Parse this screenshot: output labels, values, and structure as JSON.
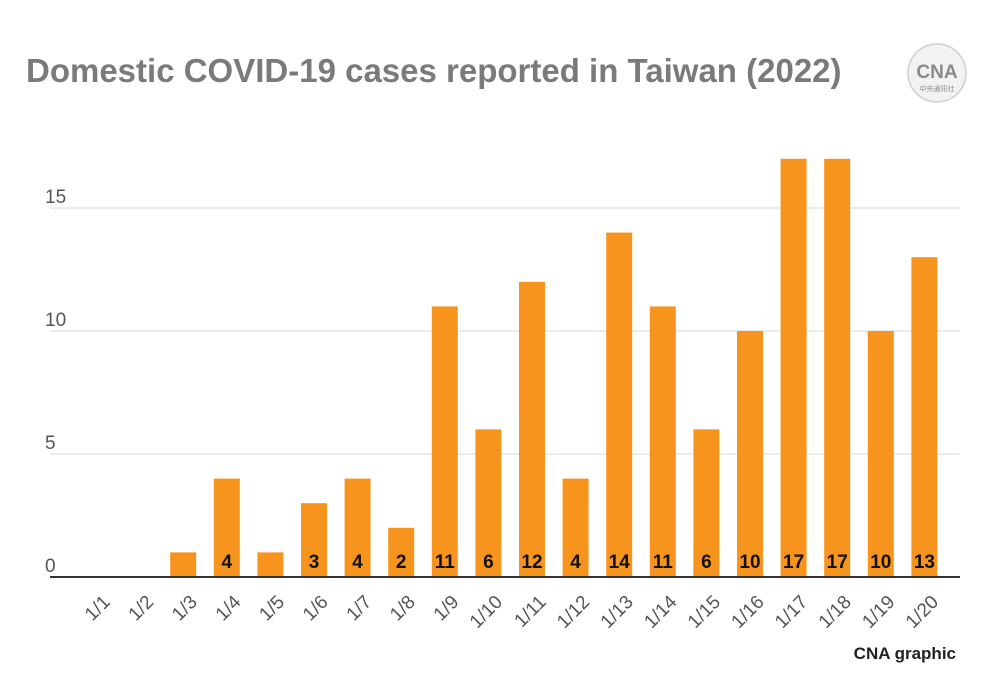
{
  "title": "Domestic COVID-19 cases reported in Taiwan (2022)",
  "logo": {
    "text": "CNA",
    "subtext": "中央通訊社"
  },
  "credit": "CNA graphic",
  "colors": {
    "bar": "#F7941D",
    "grid": "#d9d9d9",
    "axis": "#333333",
    "title": "#7a7a7a"
  },
  "chart_data": {
    "type": "bar",
    "title": "Domestic COVID-19 cases reported in Taiwan (2022)",
    "xlabel": "",
    "ylabel": "",
    "ylim": [
      0,
      17
    ],
    "yticks": [
      0,
      5,
      10,
      15
    ],
    "grid": true,
    "categories": [
      "1/1",
      "1/2",
      "1/3",
      "1/4",
      "1/5",
      "1/6",
      "1/7",
      "1/8",
      "1/9",
      "1/10",
      "1/11",
      "1/12",
      "1/13",
      "1/14",
      "1/15",
      "1/16",
      "1/17",
      "1/18",
      "1/19",
      "1/20"
    ],
    "values": [
      0,
      0,
      1,
      4,
      1,
      3,
      4,
      2,
      11,
      6,
      12,
      4,
      14,
      11,
      6,
      10,
      17,
      17,
      10,
      13
    ],
    "data_labels": [
      "",
      "",
      "",
      "4",
      "",
      "3",
      "4",
      "2",
      "11",
      "6",
      "12",
      "4",
      "14",
      "11",
      "6",
      "10",
      "17",
      "17",
      "10",
      "13"
    ]
  }
}
